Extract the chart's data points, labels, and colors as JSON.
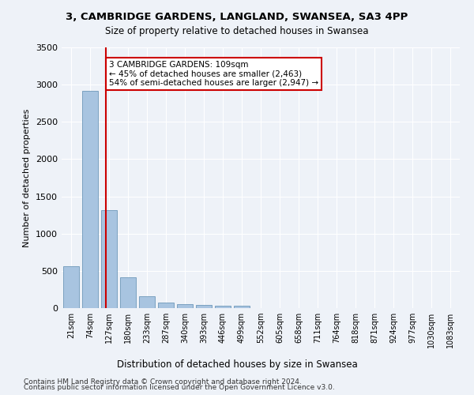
{
  "title": "3, CAMBRIDGE GARDENS, LANGLAND, SWANSEA, SA3 4PP",
  "subtitle": "Size of property relative to detached houses in Swansea",
  "xlabel": "Distribution of detached houses by size in Swansea",
  "ylabel": "Number of detached properties",
  "bar_color": "#a8c4e0",
  "bar_edge_color": "#5a8ab0",
  "background_color": "#eef2f8",
  "grid_color": "#ffffff",
  "categories": [
    "21sqm",
    "74sqm",
    "127sqm",
    "180sqm",
    "233sqm",
    "287sqm",
    "340sqm",
    "393sqm",
    "446sqm",
    "499sqm",
    "552sqm",
    "605sqm",
    "658sqm",
    "711sqm",
    "764sqm",
    "818sqm",
    "871sqm",
    "924sqm",
    "977sqm",
    "1030sqm",
    "1083sqm"
  ],
  "values": [
    560,
    2920,
    1310,
    410,
    155,
    75,
    55,
    45,
    35,
    35,
    0,
    0,
    0,
    0,
    0,
    0,
    0,
    0,
    0,
    0,
    0
  ],
  "ylim": [
    0,
    3500
  ],
  "yticks": [
    0,
    500,
    1000,
    1500,
    2000,
    2500,
    3000,
    3500
  ],
  "property_line_x": 1.85,
  "annotation_text": "3 CAMBRIDGE GARDENS: 109sqm\n← 45% of detached houses are smaller (2,463)\n54% of semi-detached houses are larger (2,947) →",
  "annotation_box_color": "#cc0000",
  "footer_line1": "Contains HM Land Registry data © Crown copyright and database right 2024.",
  "footer_line2": "Contains public sector information licensed under the Open Government Licence v3.0."
}
